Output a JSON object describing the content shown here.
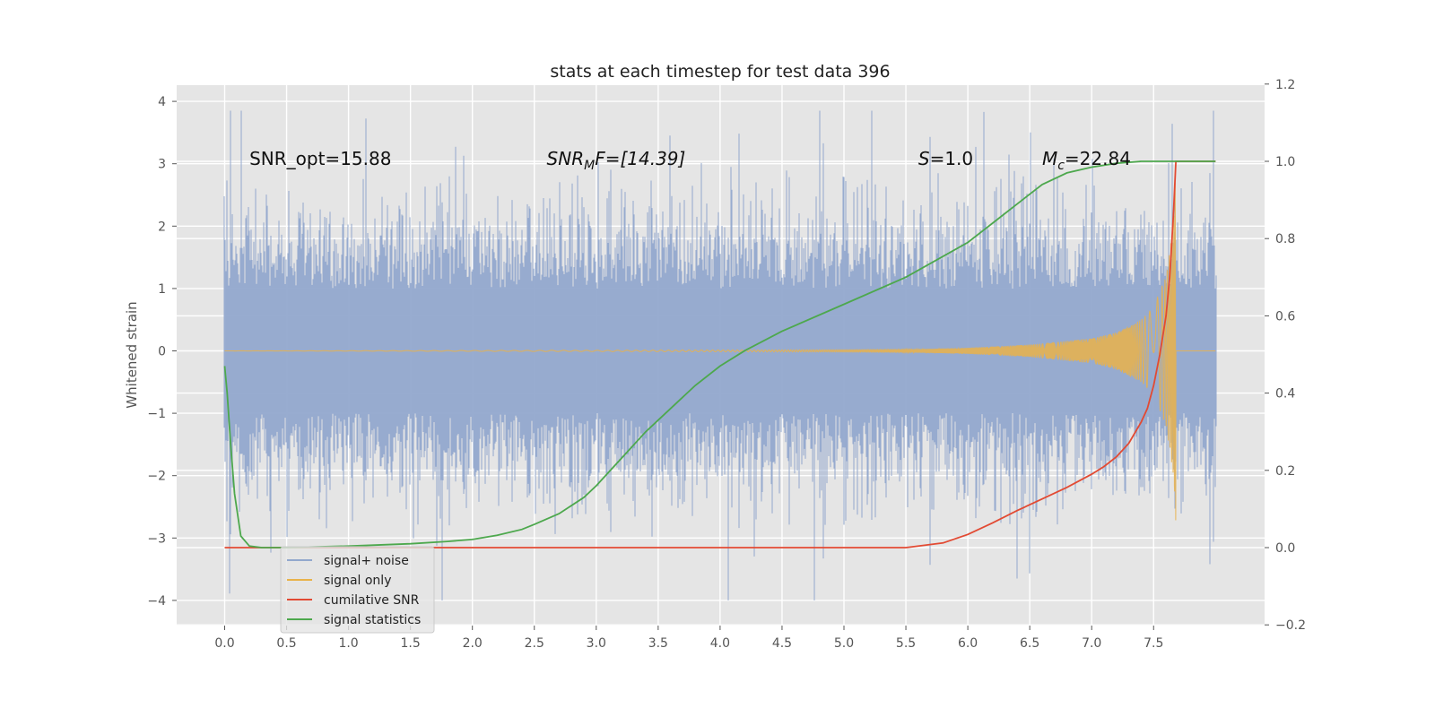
{
  "chart_data": {
    "type": "line",
    "title": "stats at each timestep for test data 396",
    "xlabel": "",
    "ylabel": "Whitened strain",
    "y2label": "",
    "xlim": [
      -0.4,
      8.35
    ],
    "ylim": [
      -4.35,
      4.25
    ],
    "y2lim": [
      -0.2,
      1.2
    ],
    "xticks": [
      "0.0",
      "0.5",
      "1.0",
      "1.5",
      "2.0",
      "2.5",
      "3.0",
      "3.5",
      "4.0",
      "4.5",
      "5.0",
      "5.5",
      "6.0",
      "6.5",
      "7.0",
      "7.5"
    ],
    "yticks": [
      "4",
      "3",
      "2",
      "1",
      "0",
      "−1",
      "−2",
      "−3",
      "−4"
    ],
    "y2ticks": [
      "1.2",
      "1.0",
      "0.8",
      "0.6",
      "0.4",
      "0.2",
      "0.0",
      "−0.2"
    ],
    "grid": true,
    "background": "#e5e5e5",
    "annotations": [
      {
        "label": "SNR_opt=15.88",
        "x": 0.2,
        "y": 3.05
      },
      {
        "label": "SNR",
        "sub": "M",
        "suffix": "F=[14.39]",
        "x": 2.6,
        "y": 3.05,
        "italic": true
      },
      {
        "label": "S",
        "suffix": "=1.0",
        "x": 5.6,
        "y": 3.05,
        "italic": true
      },
      {
        "label": "M",
        "sub": "c",
        "suffix": "=22.84",
        "x": 6.6,
        "y": 3.05,
        "italic": true
      }
    ],
    "legend": {
      "position": "lower-left",
      "entries": [
        {
          "name": "signal+ noise",
          "color": "#92a8cd"
        },
        {
          "name": "signal only",
          "color": "#e9b24a"
        },
        {
          "name": "cumilative SNR",
          "color": "#e24a33"
        },
        {
          "name": "signal statistics",
          "color": "#4da84d"
        }
      ]
    },
    "series": [
      {
        "name": "signal+ noise",
        "axis": "left",
        "color": "#92a8cd",
        "x_range": [
          0,
          8.0
        ],
        "description_values": {
          "typical_min": -1.5,
          "typical_max": 1.5,
          "peak_max": 3.85,
          "peak_min": -4.0
        }
      },
      {
        "name": "signal only",
        "axis": "left",
        "color": "#e9b24a",
        "x_range": [
          0,
          8.0
        ],
        "envelope": {
          "x": [
            0,
            5.5,
            6.0,
            6.5,
            7.0,
            7.2,
            7.4,
            7.5,
            7.6,
            7.66,
            7.68
          ],
          "amp": [
            0.0,
            0.02,
            0.05,
            0.1,
            0.2,
            0.3,
            0.5,
            0.7,
            1.2,
            2.0,
            3.0
          ]
        }
      },
      {
        "name": "cumilative SNR",
        "axis": "right",
        "color": "#e24a33",
        "x": [
          0.0,
          5.0,
          5.5,
          5.8,
          6.0,
          6.2,
          6.4,
          6.6,
          6.8,
          7.0,
          7.1,
          7.2,
          7.3,
          7.4,
          7.45,
          7.5,
          7.55,
          7.6,
          7.63,
          7.66,
          7.68,
          8.0
        ],
        "y": [
          0.0,
          0.0,
          0.0,
          0.012,
          0.034,
          0.064,
          0.096,
          0.126,
          0.156,
          0.19,
          0.21,
          0.235,
          0.27,
          0.325,
          0.36,
          0.42,
          0.5,
          0.6,
          0.7,
          0.86,
          1.0,
          1.0
        ]
      },
      {
        "name": "signal statistics",
        "axis": "right",
        "color": "#4da84d",
        "x": [
          0.0,
          0.02,
          0.05,
          0.08,
          0.13,
          0.2,
          0.3,
          0.5,
          1.0,
          1.5,
          1.8,
          2.0,
          2.2,
          2.4,
          2.5,
          2.7,
          2.9,
          3.0,
          3.2,
          3.4,
          3.6,
          3.8,
          4.0,
          4.2,
          4.5,
          5.0,
          5.5,
          6.0,
          6.2,
          6.4,
          6.6,
          6.8,
          7.0,
          7.2,
          7.4,
          7.6,
          8.0
        ],
        "y": [
          0.47,
          0.4,
          0.26,
          0.14,
          0.03,
          0.004,
          0.0,
          0.0,
          0.004,
          0.01,
          0.016,
          0.021,
          0.032,
          0.047,
          0.06,
          0.088,
          0.13,
          0.16,
          0.23,
          0.3,
          0.36,
          0.42,
          0.47,
          0.51,
          0.56,
          0.63,
          0.7,
          0.79,
          0.84,
          0.89,
          0.94,
          0.97,
          0.985,
          0.995,
          1.0,
          1.0,
          1.0
        ]
      }
    ]
  }
}
